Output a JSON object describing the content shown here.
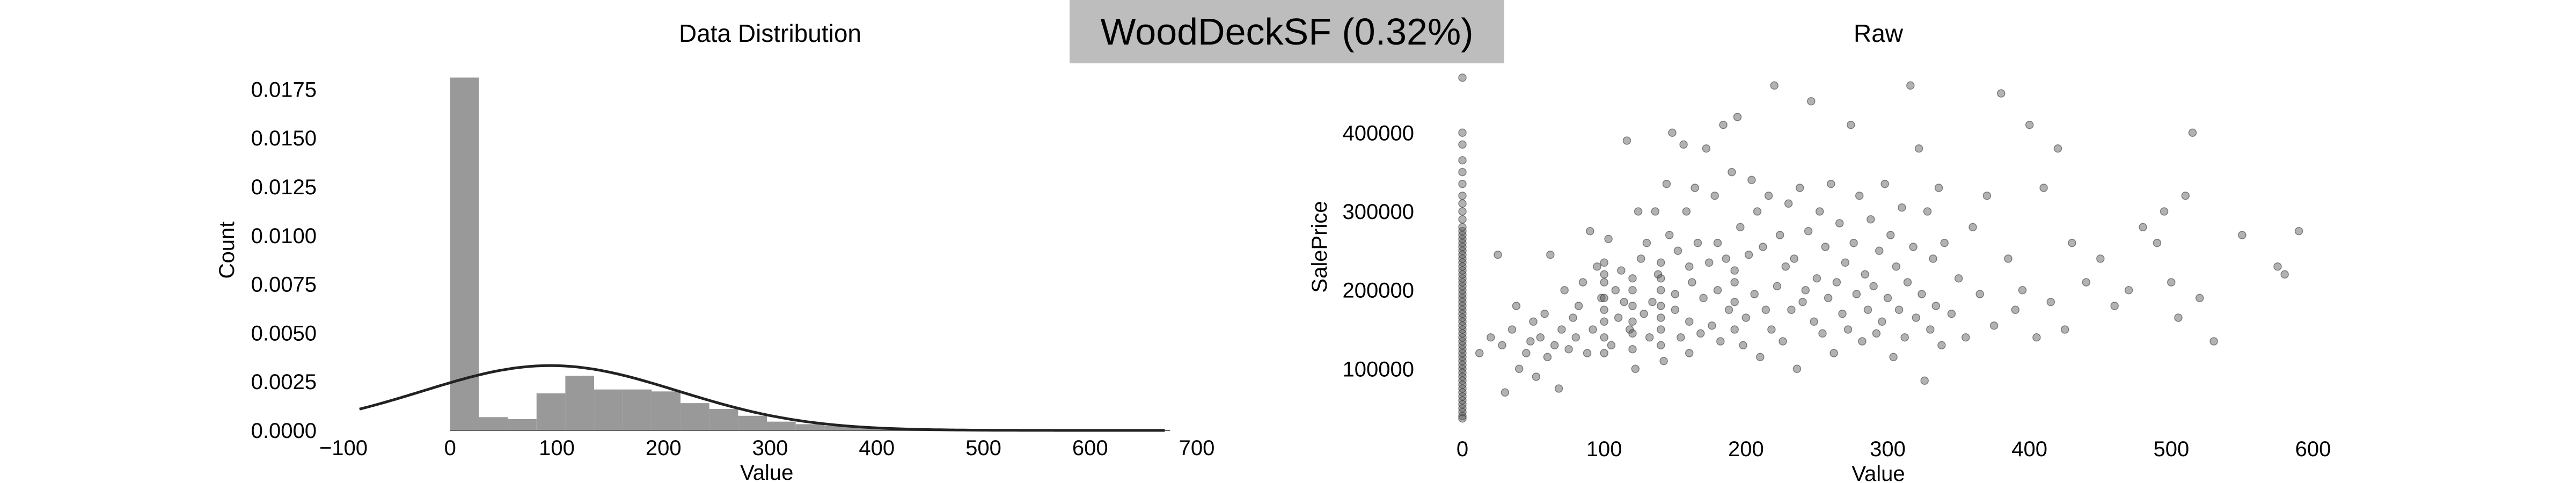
{
  "header": {
    "badge_text": "WoodDeckSF (0.32%)"
  },
  "chart_data": [
    {
      "type": "bar",
      "title": "Data Distribution",
      "xlabel": "Value",
      "ylabel": "Count",
      "xlim": [
        -100,
        700
      ],
      "ylim": [
        0,
        0.0185
      ],
      "xticks": [
        -100,
        0,
        100,
        200,
        300,
        400,
        500,
        600,
        700
      ],
      "xtick_labels": [
        "−100",
        "0",
        "100",
        "200",
        "300",
        "400",
        "500",
        "600",
        "700"
      ],
      "yticks": [
        0,
        0.0025,
        0.005,
        0.0075,
        0.01,
        0.0125,
        0.015,
        0.0175
      ],
      "ytick_labels": [
        "0.0000",
        "0.0025",
        "0.0050",
        "0.0075",
        "0.0100",
        "0.0125",
        "0.0150",
        "0.0175"
      ],
      "bins": [
        [
          0,
          27,
          0.0181
        ],
        [
          27,
          54,
          0.00068
        ],
        [
          54,
          81,
          0.00058
        ],
        [
          81,
          108,
          0.0019
        ],
        [
          108,
          135,
          0.0028
        ],
        [
          135,
          162,
          0.0021
        ],
        [
          162,
          189,
          0.0021
        ],
        [
          189,
          216,
          0.002
        ],
        [
          216,
          243,
          0.0014
        ],
        [
          243,
          270,
          0.0011
        ],
        [
          270,
          297,
          0.00075
        ],
        [
          297,
          324,
          0.00045
        ],
        [
          324,
          351,
          0.00032
        ],
        [
          351,
          378,
          0.00022
        ],
        [
          378,
          405,
          0.00014
        ],
        [
          405,
          432,
          0.0001
        ],
        [
          432,
          459,
          8e-05
        ],
        [
          459,
          486,
          6e-05
        ],
        [
          486,
          513,
          5e-05
        ],
        [
          513,
          540,
          4e-05
        ],
        [
          540,
          567,
          4e-05
        ],
        [
          567,
          594,
          3e-05
        ],
        [
          594,
          621,
          2e-05
        ],
        [
          621,
          648,
          2e-05
        ],
        [
          648,
          675,
          2e-05
        ]
      ],
      "normal_fit": {
        "mean": 94,
        "std": 120,
        "range": [
          -85,
          670
        ]
      },
      "bar_color": "#999999",
      "curve_color": "#222222",
      "grid": false
    },
    {
      "type": "scatter",
      "title": "Raw",
      "xlabel": "Value",
      "ylabel": "SalePrice",
      "xlim": [
        0,
        600
      ],
      "ylim": [
        30000,
        480000
      ],
      "xticks": [
        0,
        100,
        200,
        300,
        400,
        500,
        600
      ],
      "xtick_labels": [
        "0",
        "100",
        "200",
        "300",
        "400",
        "500",
        "600"
      ],
      "yticks": [
        100000,
        200000,
        300000,
        400000
      ],
      "ytick_labels": [
        "100000",
        "200000",
        "300000",
        "400000"
      ],
      "point_color": "#555555",
      "grid": false,
      "points": [
        [
          0,
          100000
        ],
        [
          0,
          105000
        ],
        [
          0,
          110000
        ],
        [
          0,
          115000
        ],
        [
          0,
          120000
        ],
        [
          0,
          125000
        ],
        [
          0,
          130000
        ],
        [
          0,
          135000
        ],
        [
          0,
          140000
        ],
        [
          0,
          145000
        ],
        [
          0,
          150000
        ],
        [
          0,
          155000
        ],
        [
          0,
          160000
        ],
        [
          0,
          165000
        ],
        [
          0,
          170000
        ],
        [
          0,
          175000
        ],
        [
          0,
          180000
        ],
        [
          0,
          185000
        ],
        [
          0,
          190000
        ],
        [
          0,
          195000
        ],
        [
          0,
          200000
        ],
        [
          0,
          205000
        ],
        [
          0,
          210000
        ],
        [
          0,
          215000
        ],
        [
          0,
          220000
        ],
        [
          0,
          225000
        ],
        [
          0,
          230000
        ],
        [
          0,
          235000
        ],
        [
          0,
          240000
        ],
        [
          0,
          245000
        ],
        [
          0,
          250000
        ],
        [
          0,
          255000
        ],
        [
          0,
          260000
        ],
        [
          0,
          265000
        ],
        [
          0,
          270000
        ],
        [
          0,
          275000
        ],
        [
          0,
          280000
        ],
        [
          0,
          290000
        ],
        [
          0,
          300000
        ],
        [
          0,
          310000
        ],
        [
          0,
          320000
        ],
        [
          0,
          335000
        ],
        [
          0,
          350000
        ],
        [
          0,
          365000
        ],
        [
          0,
          385000
        ],
        [
          0,
          400000
        ],
        [
          0,
          470000
        ],
        [
          0,
          95000
        ],
        [
          0,
          90000
        ],
        [
          0,
          85000
        ],
        [
          0,
          80000
        ],
        [
          0,
          75000
        ],
        [
          0,
          70000
        ],
        [
          0,
          65000
        ],
        [
          0,
          60000
        ],
        [
          0,
          55000
        ],
        [
          0,
          50000
        ],
        [
          0,
          45000
        ],
        [
          0,
          40000
        ],
        [
          0,
          37000
        ],
        [
          12,
          120000
        ],
        [
          20,
          140000
        ],
        [
          25,
          245000
        ],
        [
          28,
          130000
        ],
        [
          30,
          70000
        ],
        [
          35,
          150000
        ],
        [
          38,
          180000
        ],
        [
          40,
          100000
        ],
        [
          45,
          120000
        ],
        [
          48,
          135000
        ],
        [
          50,
          160000
        ],
        [
          52,
          90000
        ],
        [
          55,
          140000
        ],
        [
          58,
          170000
        ],
        [
          60,
          115000
        ],
        [
          62,
          245000
        ],
        [
          65,
          130000
        ],
        [
          68,
          75000
        ],
        [
          70,
          150000
        ],
        [
          72,
          200000
        ],
        [
          75,
          125000
        ],
        [
          78,
          165000
        ],
        [
          80,
          140000
        ],
        [
          82,
          180000
        ],
        [
          85,
          210000
        ],
        [
          88,
          120000
        ],
        [
          90,
          275000
        ],
        [
          92,
          150000
        ],
        [
          95,
          230000
        ],
        [
          98,
          190000
        ],
        [
          100,
          120000
        ],
        [
          100,
          140000
        ],
        [
          100,
          160000
        ],
        [
          100,
          175000
        ],
        [
          100,
          190000
        ],
        [
          100,
          210000
        ],
        [
          100,
          220000
        ],
        [
          100,
          235000
        ],
        [
          103,
          265000
        ],
        [
          105,
          130000
        ],
        [
          108,
          200000
        ],
        [
          110,
          165000
        ],
        [
          112,
          225000
        ],
        [
          114,
          185000
        ],
        [
          116,
          390000
        ],
        [
          118,
          150000
        ],
        [
          120,
          125000
        ],
        [
          120,
          145000
        ],
        [
          120,
          160000
        ],
        [
          120,
          180000
        ],
        [
          120,
          200000
        ],
        [
          120,
          215000
        ],
        [
          122,
          100000
        ],
        [
          124,
          300000
        ],
        [
          126,
          240000
        ],
        [
          128,
          170000
        ],
        [
          130,
          260000
        ],
        [
          132,
          140000
        ],
        [
          134,
          185000
        ],
        [
          136,
          300000
        ],
        [
          138,
          220000
        ],
        [
          140,
          130000
        ],
        [
          140,
          150000
        ],
        [
          140,
          165000
        ],
        [
          140,
          180000
        ],
        [
          140,
          200000
        ],
        [
          140,
          215000
        ],
        [
          140,
          235000
        ],
        [
          142,
          110000
        ],
        [
          144,
          335000
        ],
        [
          146,
          270000
        ],
        [
          148,
          400000
        ],
        [
          150,
          175000
        ],
        [
          150,
          195000
        ],
        [
          152,
          250000
        ],
        [
          154,
          140000
        ],
        [
          156,
          385000
        ],
        [
          158,
          300000
        ],
        [
          160,
          120000
        ],
        [
          160,
          160000
        ],
        [
          160,
          230000
        ],
        [
          162,
          210000
        ],
        [
          164,
          330000
        ],
        [
          166,
          260000
        ],
        [
          168,
          145000
        ],
        [
          170,
          190000
        ],
        [
          172,
          380000
        ],
        [
          174,
          235000
        ],
        [
          176,
          155000
        ],
        [
          178,
          320000
        ],
        [
          180,
          200000
        ],
        [
          180,
          260000
        ],
        [
          182,
          135000
        ],
        [
          184,
          410000
        ],
        [
          186,
          240000
        ],
        [
          188,
          175000
        ],
        [
          190,
          350000
        ],
        [
          192,
          150000
        ],
        [
          192,
          185000
        ],
        [
          192,
          210000
        ],
        [
          192,
          225000
        ],
        [
          194,
          420000
        ],
        [
          196,
          280000
        ],
        [
          198,
          130000
        ],
        [
          200,
          165000
        ],
        [
          202,
          245000
        ],
        [
          204,
          340000
        ],
        [
          206,
          195000
        ],
        [
          208,
          300000
        ],
        [
          210,
          115000
        ],
        [
          212,
          255000
        ],
        [
          214,
          175000
        ],
        [
          216,
          320000
        ],
        [
          218,
          150000
        ],
        [
          220,
          460000
        ],
        [
          222,
          205000
        ],
        [
          224,
          270000
        ],
        [
          226,
          135000
        ],
        [
          228,
          230000
        ],
        [
          230,
          310000
        ],
        [
          232,
          175000
        ],
        [
          234,
          240000
        ],
        [
          236,
          100000
        ],
        [
          238,
          330000
        ],
        [
          240,
          185000
        ],
        [
          242,
          200000
        ],
        [
          244,
          275000
        ],
        [
          246,
          440000
        ],
        [
          248,
          160000
        ],
        [
          250,
          215000
        ],
        [
          252,
          300000
        ],
        [
          254,
          145000
        ],
        [
          256,
          255000
        ],
        [
          258,
          190000
        ],
        [
          260,
          335000
        ],
        [
          262,
          120000
        ],
        [
          264,
          210000
        ],
        [
          266,
          285000
        ],
        [
          268,
          170000
        ],
        [
          270,
          235000
        ],
        [
          272,
          150000
        ],
        [
          274,
          410000
        ],
        [
          276,
          260000
        ],
        [
          278,
          195000
        ],
        [
          280,
          320000
        ],
        [
          282,
          135000
        ],
        [
          284,
          220000
        ],
        [
          286,
          175000
        ],
        [
          288,
          290000
        ],
        [
          290,
          205000
        ],
        [
          292,
          145000
        ],
        [
          294,
          250000
        ],
        [
          296,
          160000
        ],
        [
          298,
          335000
        ],
        [
          300,
          190000
        ],
        [
          302,
          270000
        ],
        [
          304,
          115000
        ],
        [
          306,
          230000
        ],
        [
          308,
          175000
        ],
        [
          310,
          305000
        ],
        [
          312,
          140000
        ],
        [
          314,
          210000
        ],
        [
          316,
          460000
        ],
        [
          318,
          255000
        ],
        [
          320,
          165000
        ],
        [
          322,
          380000
        ],
        [
          324,
          195000
        ],
        [
          326,
          85000
        ],
        [
          328,
          300000
        ],
        [
          330,
          150000
        ],
        [
          332,
          240000
        ],
        [
          334,
          180000
        ],
        [
          336,
          330000
        ],
        [
          338,
          130000
        ],
        [
          340,
          260000
        ],
        [
          345,
          170000
        ],
        [
          350,
          215000
        ],
        [
          355,
          140000
        ],
        [
          360,
          280000
        ],
        [
          365,
          195000
        ],
        [
          370,
          320000
        ],
        [
          375,
          155000
        ],
        [
          380,
          450000
        ],
        [
          385,
          240000
        ],
        [
          390,
          175000
        ],
        [
          395,
          200000
        ],
        [
          400,
          410000
        ],
        [
          405,
          140000
        ],
        [
          410,
          330000
        ],
        [
          415,
          185000
        ],
        [
          420,
          380000
        ],
        [
          425,
          150000
        ],
        [
          430,
          260000
        ],
        [
          440,
          210000
        ],
        [
          450,
          240000
        ],
        [
          460,
          180000
        ],
        [
          470,
          200000
        ],
        [
          480,
          280000
        ],
        [
          490,
          260000
        ],
        [
          495,
          300000
        ],
        [
          500,
          210000
        ],
        [
          505,
          165000
        ],
        [
          510,
          320000
        ],
        [
          515,
          400000
        ],
        [
          520,
          190000
        ],
        [
          530,
          135000
        ],
        [
          550,
          270000
        ],
        [
          575,
          230000
        ],
        [
          580,
          220000
        ],
        [
          590,
          275000
        ]
      ]
    }
  ]
}
